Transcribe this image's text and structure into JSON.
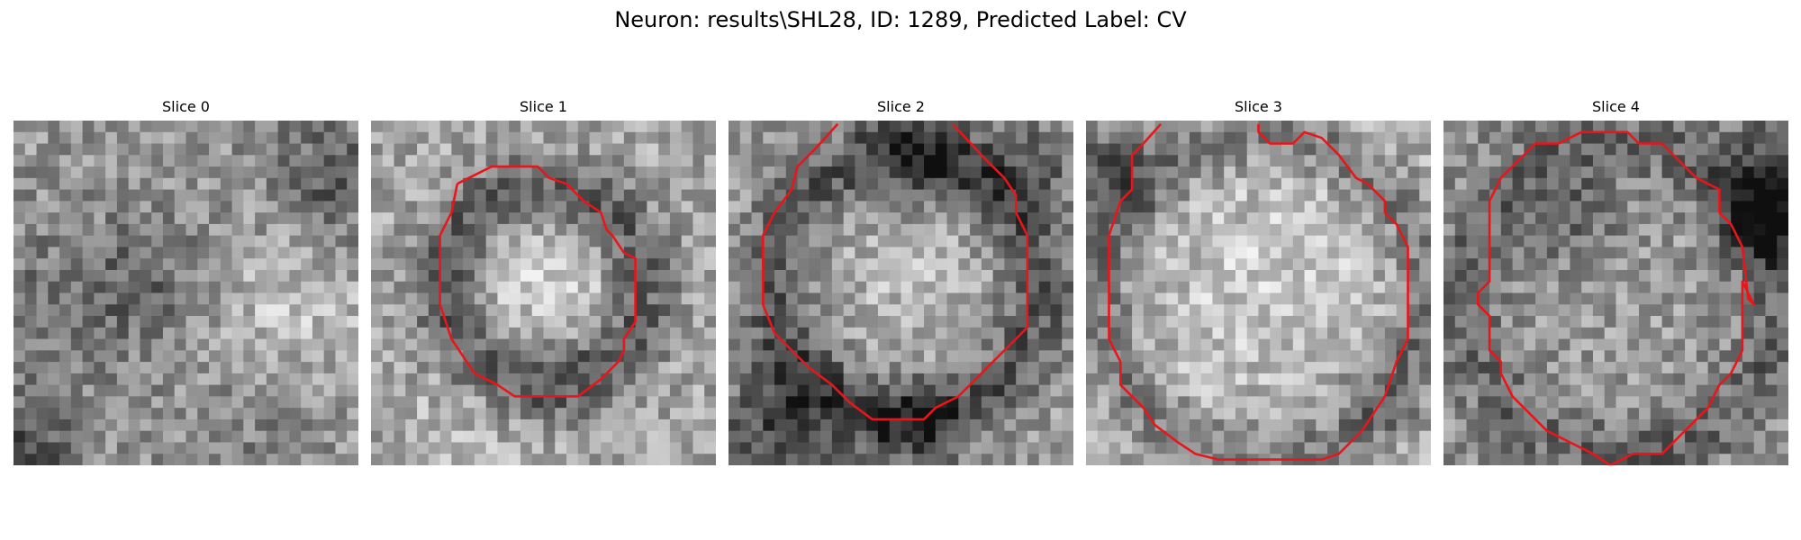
{
  "figure": {
    "title": "Neuron: results\\SHL28, ID: 1289, Predicted Label: CV"
  },
  "panels": [
    {
      "title": "Slice 0",
      "contour": false
    },
    {
      "title": "Slice 1",
      "contour": true
    },
    {
      "title": "Slice 2",
      "contour": true
    },
    {
      "title": "Slice 3",
      "contour": true
    },
    {
      "title": "Slice 4",
      "contour": true
    }
  ],
  "colors": {
    "contour": "#e8161b",
    "background": "#ffffff"
  }
}
